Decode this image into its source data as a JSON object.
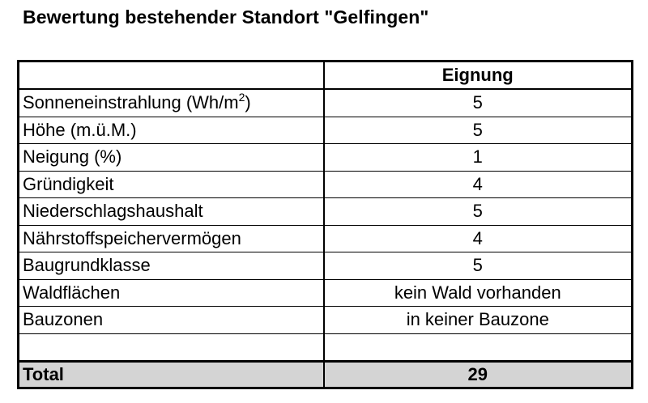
{
  "title": "Bewertung bestehender Standort \"Gelfingen\"",
  "table": {
    "header": {
      "label": "",
      "value": "Eignung"
    },
    "rows": [
      {
        "label": "Sonneneinstrahlung (Wh/m",
        "label_sup": "2",
        "label_suffix": ")",
        "value": "5"
      },
      {
        "label": "Höhe (m.ü.M.)",
        "value": "5"
      },
      {
        "label": "Neigung (%)",
        "value": "1"
      },
      {
        "label": "Gründigkeit",
        "value": "4"
      },
      {
        "label": "Niederschlagshaushalt",
        "value": "5"
      },
      {
        "label": "Nährstoffspeichervermögen",
        "value": "4"
      },
      {
        "label": "Baugrundklasse",
        "value": "5"
      },
      {
        "label": "Waldflächen",
        "value": "kein Wald vorhanden"
      },
      {
        "label": "Bauzonen",
        "value": "in keiner Bauzone"
      }
    ],
    "total": {
      "label": "Total",
      "value": "29"
    }
  }
}
